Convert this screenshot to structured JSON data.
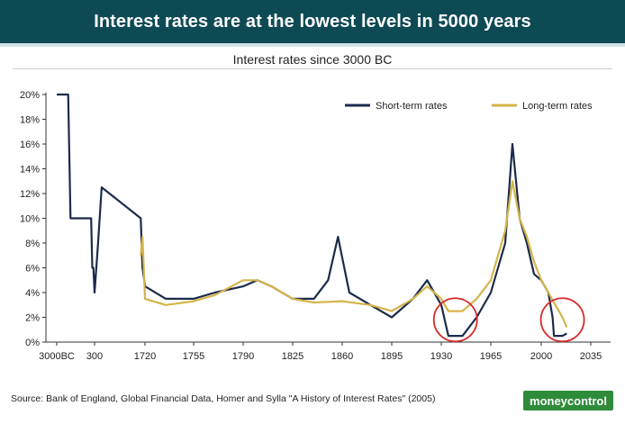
{
  "header": {
    "title": "Interest rates are at the lowest levels in 5000 years"
  },
  "footer": {
    "source": "Source:  Bank of England, Global Financial Data, Homer and Sylla \"A History of Interest Rates\" (2005)",
    "logo": "moneycontrol"
  },
  "colors": {
    "banner": "#0e4a54",
    "short_term": "#1c2b4a",
    "long_term": "#d4b44a",
    "highlight": "#d62a2a",
    "logo": "#2e8b3a"
  },
  "chart_data": {
    "type": "line",
    "title": "Interest rates since 3000 BC",
    "xlabel": "",
    "ylabel": "",
    "x_tick_labels": [
      "3000BC",
      "300",
      "1720",
      "1755",
      "1790",
      "1825",
      "1860",
      "1895",
      "1930",
      "1965",
      "2000",
      "2035"
    ],
    "y_tick_labels": [
      "0%",
      "2%",
      "4%",
      "6%",
      "8%",
      "10%",
      "12%",
      "14%",
      "16%",
      "18%",
      "20%"
    ],
    "ylim": [
      0,
      20
    ],
    "grid": false,
    "legend_position": "top-right",
    "series": [
      {
        "name": "Short-term rates",
        "color": "#1c2b4a",
        "points": [
          [
            "3000BC",
            20
          ],
          [
            "2000BC",
            20
          ],
          [
            "1800BC",
            10
          ],
          [
            "600BC",
            10
          ],
          [
            "0",
            10
          ],
          [
            "100",
            6
          ],
          [
            "200",
            6
          ],
          [
            "300",
            4
          ],
          [
            "400",
            8
          ],
          [
            "500",
            12.5
          ],
          [
            "1600",
            10
          ],
          [
            "1650",
            6
          ],
          [
            "1700",
            5
          ],
          [
            "1720",
            4.5
          ],
          [
            "1735",
            3.5
          ],
          [
            "1755",
            3.5
          ],
          [
            "1770",
            4
          ],
          [
            "1790",
            4.5
          ],
          [
            "1800",
            5
          ],
          [
            "1810",
            4.5
          ],
          [
            "1825",
            3.5
          ],
          [
            "1840",
            3.5
          ],
          [
            "1850",
            5
          ],
          [
            "1857",
            8.5
          ],
          [
            "1865",
            4
          ],
          [
            "1880",
            3
          ],
          [
            "1895",
            2
          ],
          [
            "1910",
            3.5
          ],
          [
            "1920",
            5
          ],
          [
            "1930",
            3
          ],
          [
            "1935",
            0.5
          ],
          [
            "1945",
            0.5
          ],
          [
            "1955",
            2
          ],
          [
            "1965",
            4
          ],
          [
            "1970",
            6
          ],
          [
            "1975",
            8
          ],
          [
            "1980",
            16
          ],
          [
            "1985",
            10
          ],
          [
            "1990",
            8
          ],
          [
            "1995",
            5.5
          ],
          [
            "2000",
            5
          ],
          [
            "2005",
            4
          ],
          [
            "2008",
            2
          ],
          [
            "2009",
            0.5
          ],
          [
            "2015",
            0.5
          ],
          [
            "2018",
            0.7
          ]
        ]
      },
      {
        "name": "Long-term rates",
        "color": "#d4b44a",
        "points": [
          [
            "1600",
            7
          ],
          [
            "1650",
            8.5
          ],
          [
            "1700",
            5
          ],
          [
            "1720",
            3.5
          ],
          [
            "1735",
            3
          ],
          [
            "1755",
            3.3
          ],
          [
            "1770",
            3.8
          ],
          [
            "1790",
            5
          ],
          [
            "1800",
            5
          ],
          [
            "1810",
            4.5
          ],
          [
            "1825",
            3.5
          ],
          [
            "1840",
            3.2
          ],
          [
            "1860",
            3.3
          ],
          [
            "1880",
            3
          ],
          [
            "1895",
            2.5
          ],
          [
            "1910",
            3.5
          ],
          [
            "1920",
            4.5
          ],
          [
            "1930",
            3.5
          ],
          [
            "1935",
            2.5
          ],
          [
            "1945",
            2.5
          ],
          [
            "1955",
            3.5
          ],
          [
            "1965",
            5
          ],
          [
            "1970",
            7
          ],
          [
            "1975",
            9
          ],
          [
            "1980",
            13
          ],
          [
            "1985",
            10
          ],
          [
            "1990",
            8.5
          ],
          [
            "1995",
            6.5
          ],
          [
            "2000",
            5
          ],
          [
            "2005",
            4
          ],
          [
            "2010",
            3
          ],
          [
            "2015",
            2
          ],
          [
            "2018",
            1.2
          ]
        ]
      }
    ],
    "annotations": [
      {
        "shape": "circle",
        "x": "1940",
        "y": 1.8,
        "color": "#d62a2a"
      },
      {
        "shape": "circle",
        "x": "2015",
        "y": 1.8,
        "color": "#d62a2a"
      }
    ]
  }
}
